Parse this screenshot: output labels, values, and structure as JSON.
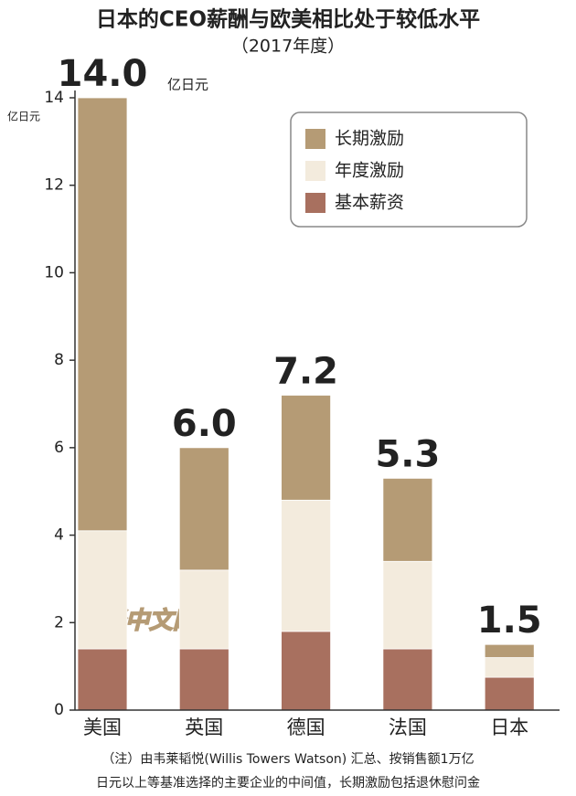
{
  "chart_data": {
    "type": "stacked_bar",
    "title": "日本的CEO薪酬与欧美相比处于较低水平",
    "subtitle": "（2017年度）",
    "y_label": "亿日元",
    "total_unit": "亿日元",
    "categories": [
      "美国",
      "英国",
      "德国",
      "法国",
      "日本"
    ],
    "series": [
      {
        "name": "基本薪资",
        "color": "#a8705f",
        "values": [
          1.4,
          1.4,
          1.8,
          1.4,
          0.75
        ]
      },
      {
        "name": "年度激励",
        "color": "#f3ebdd",
        "values": [
          2.7,
          1.8,
          3.0,
          2.0,
          0.45
        ]
      },
      {
        "name": "长期激励",
        "color": "#b59b75",
        "values": [
          9.9,
          2.8,
          2.4,
          1.9,
          0.3
        ]
      }
    ],
    "totals": [
      14.0,
      6.0,
      7.2,
      5.3,
      1.5
    ],
    "total_labels": [
      "14.0",
      "6.0",
      "7.2",
      "5.3",
      "1.5"
    ],
    "ylim": [
      0,
      14
    ],
    "yticks": [
      0,
      2,
      4,
      6,
      8,
      10,
      12,
      14
    ],
    "watermark": "日经中文网",
    "note": [
      "（注）由韦莱韬悦(Willis Towers Watson) 汇总、按销售额1万亿",
      "日元以上等基准选择的主要企业的中间值，长期激励包括退休慰问金"
    ]
  }
}
